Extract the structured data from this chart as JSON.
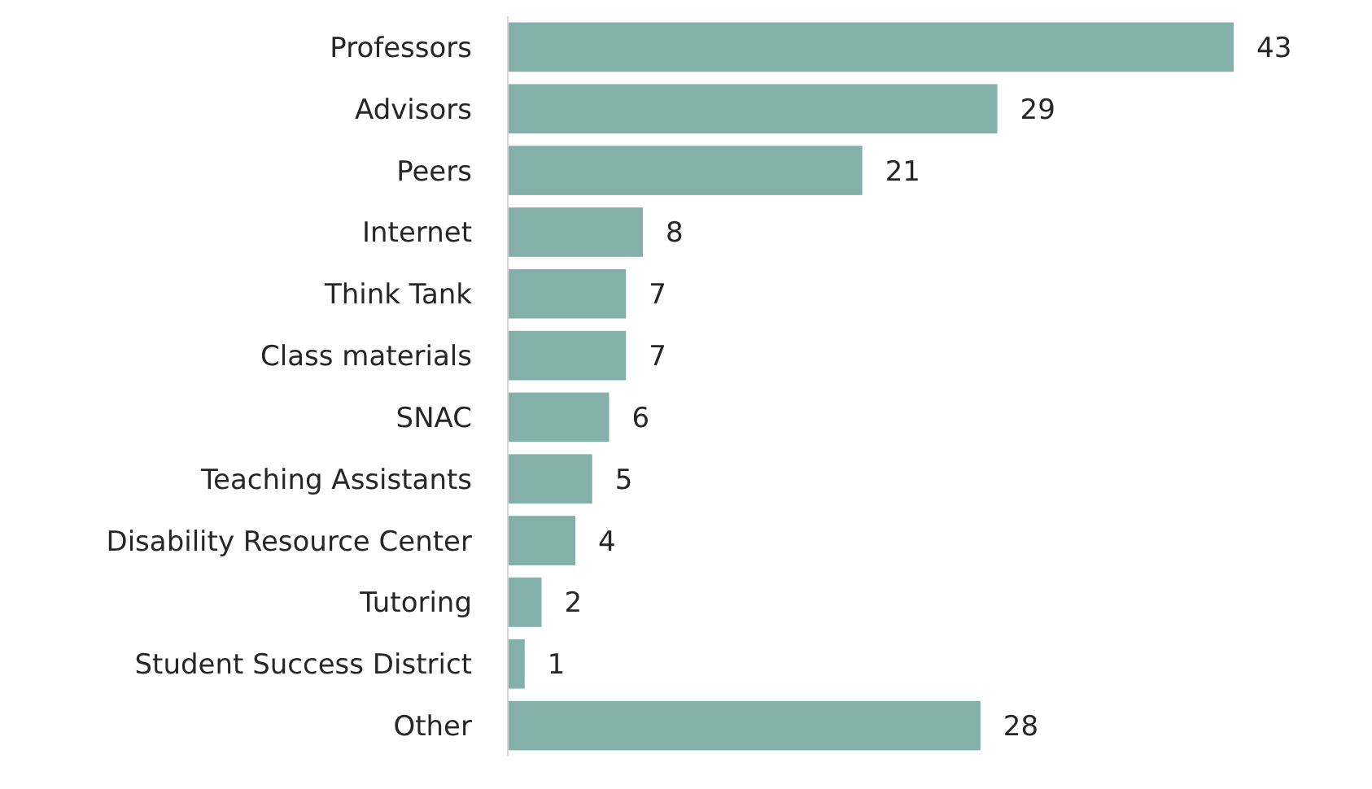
{
  "chart_data": {
    "type": "bar",
    "orientation": "horizontal",
    "data_labels": true,
    "categories": [
      "Professors",
      "Advisors",
      "Peers",
      "Internet",
      "Think Tank",
      "Class materials",
      "SNAC",
      "Teaching Assistants",
      "Disability Resource Center",
      "Tutoring",
      "Student Success District",
      "Other"
    ],
    "values": [
      43,
      29,
      21,
      8,
      7,
      7,
      6,
      5,
      4,
      2,
      1,
      28
    ],
    "color": "#84b0aa"
  }
}
